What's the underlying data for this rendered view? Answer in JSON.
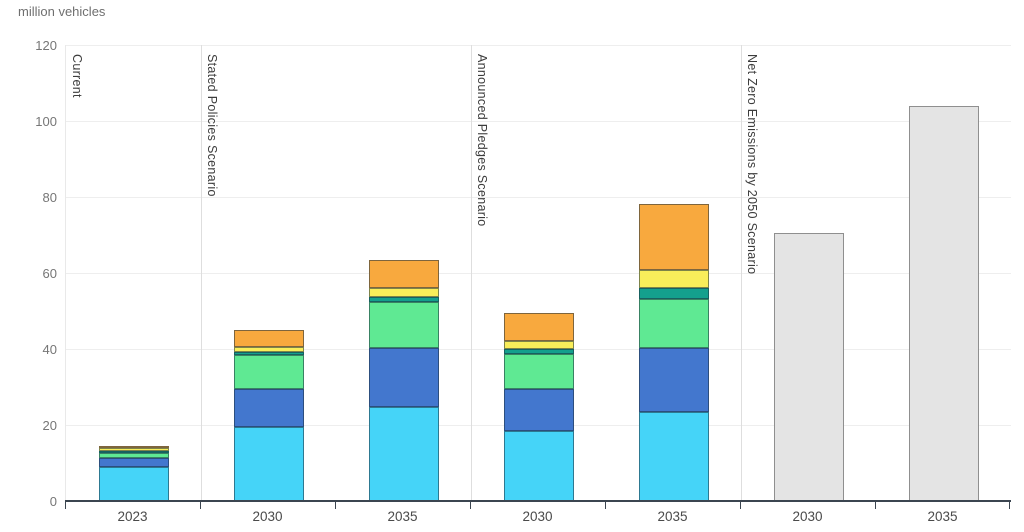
{
  "header": {
    "title": "million vehicles"
  },
  "chart_data": {
    "type": "bar",
    "stacked": true,
    "title": "million vehicles",
    "xlabel": "",
    "ylabel": "million vehicles",
    "ylim": [
      0,
      120
    ],
    "yticks": [
      0,
      20,
      40,
      60,
      80,
      100,
      120
    ],
    "grid": "horizontal",
    "legend": "none",
    "segment_colors": [
      "#45D4F8",
      "#4377CE",
      "#5FE993",
      "#14A08D",
      "#F9EE5A",
      "#F8A93E"
    ],
    "plain_bar_fill": "#E4E4E4",
    "groups": [
      {
        "label": "Current",
        "bars": [
          {
            "year": "2023",
            "style": "stacked",
            "segments": [
              8.9,
              2.5,
              1.2,
              0.4,
              0.7,
              0.7
            ],
            "total": 14.4
          }
        ]
      },
      {
        "label": "Stated Policies Scenario",
        "bars": [
          {
            "year": "2030",
            "style": "stacked",
            "segments": [
              19.5,
              10.0,
              9.0,
              0.8,
              1.3,
              4.5
            ],
            "total": 45.1
          },
          {
            "year": "2035",
            "style": "stacked",
            "segments": [
              24.7,
              15.6,
              12.0,
              1.4,
              2.3,
              7.4
            ],
            "total": 63.4
          }
        ]
      },
      {
        "label": "Announced Pledges Scenario",
        "bars": [
          {
            "year": "2030",
            "style": "stacked",
            "segments": [
              18.5,
              11.0,
              9.2,
              1.3,
              2.0,
              7.4
            ],
            "total": 49.4
          },
          {
            "year": "2035",
            "style": "stacked",
            "segments": [
              23.5,
              16.8,
              12.9,
              2.8,
              4.8,
              17.4
            ],
            "total": 78.2
          }
        ]
      },
      {
        "label": "Net Zero Emissions by 2050 Scenario",
        "bars": [
          {
            "year": "2030",
            "style": "plain",
            "total": 70.5
          },
          {
            "year": "2035",
            "style": "plain",
            "total": 104.0
          }
        ]
      }
    ]
  }
}
